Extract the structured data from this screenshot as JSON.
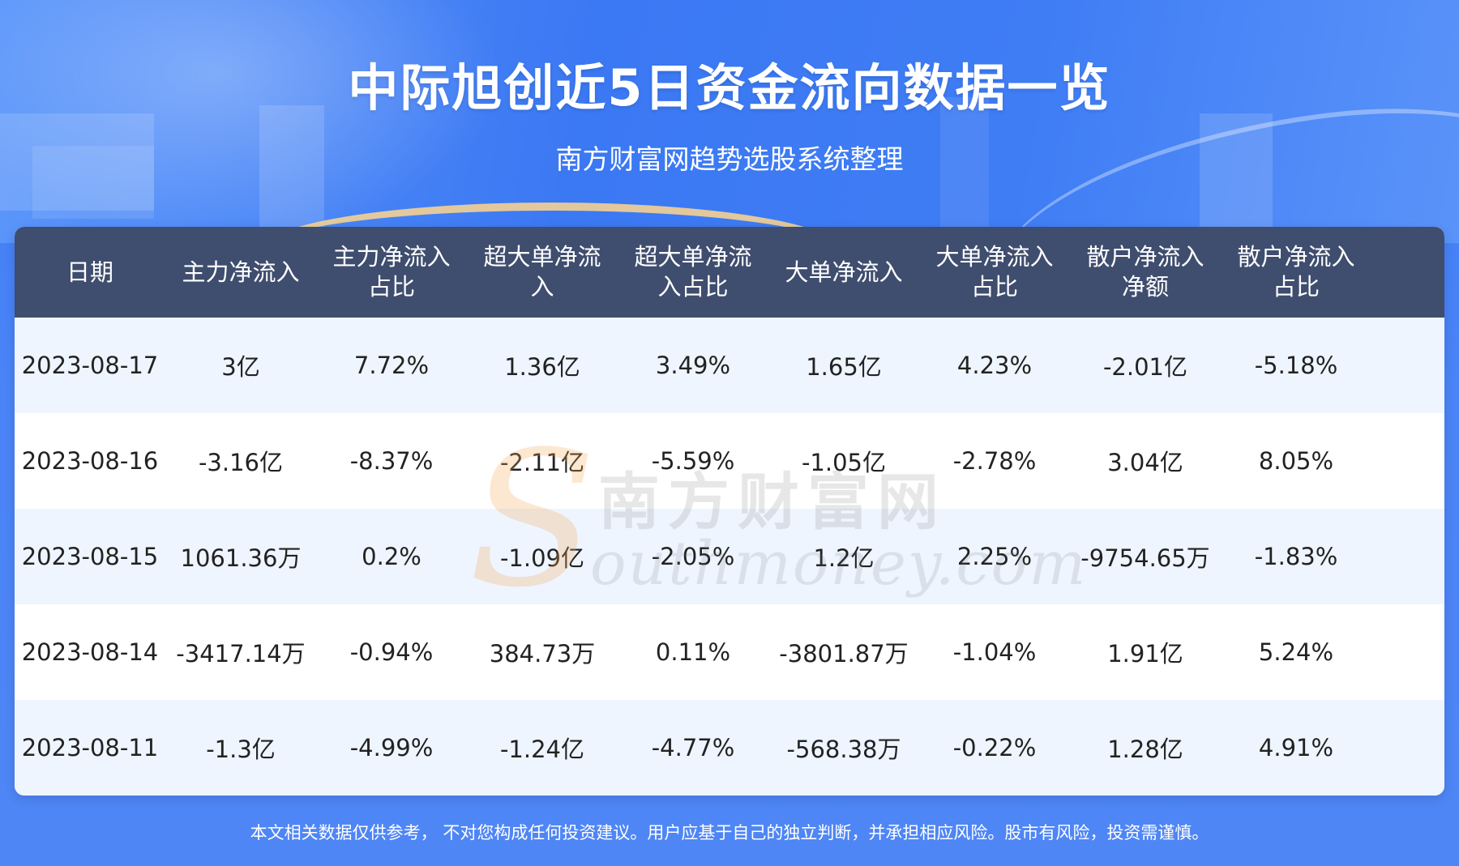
{
  "header": {
    "title": "中际旭创近5日资金流向数据一览",
    "subtitle": "南方财富网趋势选股系统整理"
  },
  "table": {
    "headers": [
      [
        "日期"
      ],
      [
        "主力净流入"
      ],
      [
        "主力净流入",
        "占比"
      ],
      [
        "超大单净流",
        "入"
      ],
      [
        "超大单净流",
        "入占比"
      ],
      [
        "大单净流入"
      ],
      [
        "大单净流入",
        "占比"
      ],
      [
        "散户净流入",
        "净额"
      ],
      [
        "散户净流入",
        "占比"
      ]
    ],
    "rows": [
      [
        "2023-08-17",
        "3亿",
        "7.72%",
        "1.36亿",
        "3.49%",
        "1.65亿",
        "4.23%",
        "-2.01亿",
        "-5.18%"
      ],
      [
        "2023-08-16",
        "-3.16亿",
        "-8.37%",
        "-2.11亿",
        "-5.59%",
        "-1.05亿",
        "-2.78%",
        "3.04亿",
        "8.05%"
      ],
      [
        "2023-08-15",
        "1061.36万",
        "0.2%",
        "-1.09亿",
        "-2.05%",
        "1.2亿",
        "2.25%",
        "-9754.65万",
        "-1.83%"
      ],
      [
        "2023-08-14",
        "-3417.14万",
        "-0.94%",
        "384.73万",
        "0.11%",
        "-3801.87万",
        "-1.04%",
        "1.91亿",
        "5.24%"
      ],
      [
        "2023-08-11",
        "-1.3亿",
        "-4.99%",
        "-1.24亿",
        "-4.77%",
        "-568.38万",
        "-0.22%",
        "1.28亿",
        "4.91%"
      ]
    ]
  },
  "watermark": {
    "cn": "南方财富网",
    "en": "outhmoney.com"
  },
  "footer": {
    "disclaimer": "本文相关数据仅供参考， 不对您构成任何投资建议。用户应基于自己的独立判断，并承担相应风险。股市有风险，投资需谨慎。"
  }
}
